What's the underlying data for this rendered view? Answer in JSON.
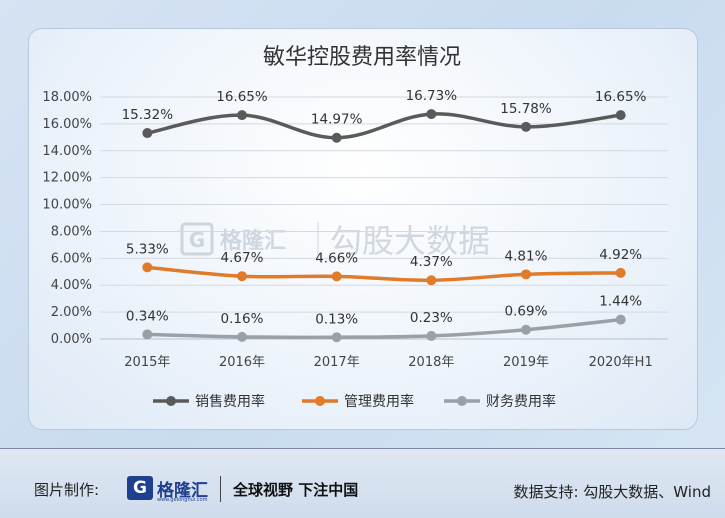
{
  "chart_data": {
    "type": "line",
    "title": "敏华控股费用率情况",
    "categories": [
      "2015年",
      "2016年",
      "2017年",
      "2018年",
      "2019年",
      "2020年H1"
    ],
    "y_ticks": [
      "0.00%",
      "2.00%",
      "4.00%",
      "6.00%",
      "8.00%",
      "10.00%",
      "12.00%",
      "14.00%",
      "16.00%",
      "18.00%"
    ],
    "ylim": [
      0,
      18
    ],
    "grid": true,
    "legend_position": "bottom",
    "series": [
      {
        "name": "销售费用率",
        "color": "#5a5a5a",
        "values": [
          15.32,
          16.65,
          14.97,
          16.73,
          15.78,
          16.65
        ],
        "labels": [
          "15.32%",
          "16.65%",
          "14.97%",
          "16.73%",
          "15.78%",
          "16.65%"
        ]
      },
      {
        "name": "管理费用率",
        "color": "#e07b2a",
        "values": [
          5.33,
          4.67,
          4.66,
          4.37,
          4.81,
          4.92
        ],
        "labels": [
          "5.33%",
          "4.67%",
          "4.66%",
          "4.37%",
          "4.81%",
          "4.92%"
        ]
      },
      {
        "name": "财务费用率",
        "color": "#9aa0a6",
        "values": [
          0.34,
          0.16,
          0.13,
          0.23,
          0.69,
          1.44
        ],
        "labels": [
          "0.34%",
          "0.16%",
          "0.13%",
          "0.23%",
          "0.69%",
          "1.44%"
        ]
      }
    ]
  },
  "watermark": {
    "logo": "格隆汇",
    "text": "勾股大数据"
  },
  "footer": {
    "made_by": "图片制作:",
    "logo_letter": "G",
    "logo_text": "格隆汇",
    "logo_url": "www.gelonghui.com",
    "slogan": "全球视野 下注中国",
    "source": "数据支持: 勾股大数据、Wind"
  }
}
